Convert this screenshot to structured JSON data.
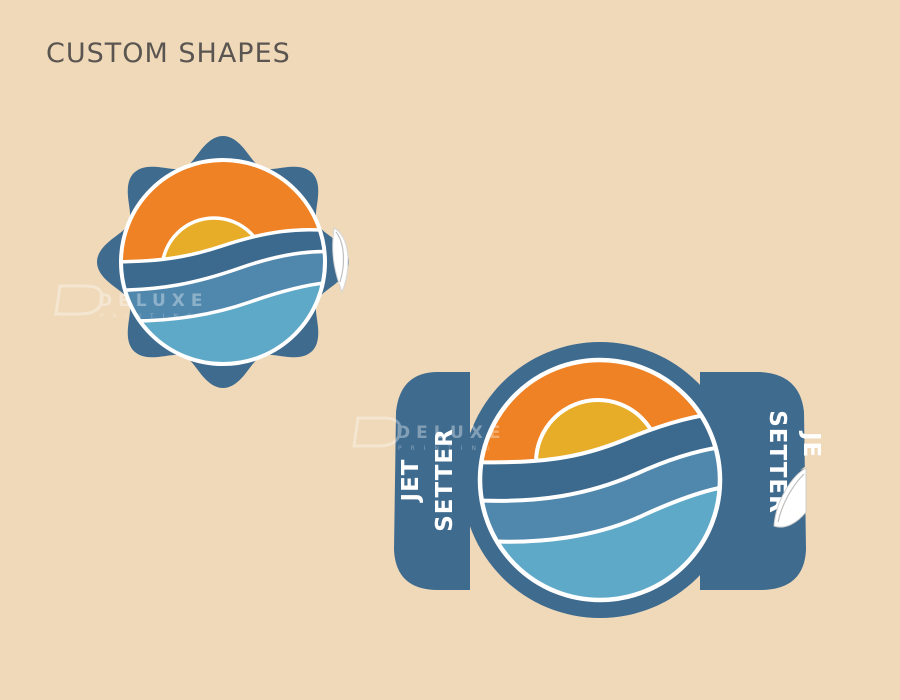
{
  "title": "CUSTOM SHAPES",
  "watermark": {
    "brand": "DELUXE",
    "sub": "PRINTING",
    "icon": "deluxe-d-logo-icon"
  },
  "large_sticker": {
    "left_tab_lines": [
      "JET",
      "SETTER"
    ],
    "right_tab_lines": [
      "SETTER",
      "JE"
    ]
  },
  "colors": {
    "background": "#efd9b9",
    "sticker_blue": "#3f6b8f",
    "sky_orange": "#ee8224",
    "sun_yellow": "#e8ad28",
    "wave_dark": "#3c6a8e",
    "wave_mid": "#5087ad",
    "wave_light": "#5fa9c8",
    "title_gray": "#5a5550"
  }
}
